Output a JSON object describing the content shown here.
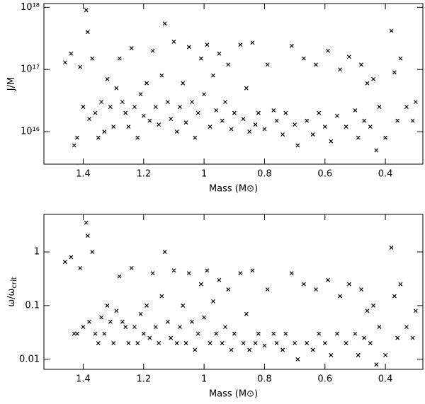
{
  "chart_data": [
    {
      "type": "scatter",
      "x_label": "Mass (M⊙)",
      "y_label": "J/M",
      "log_y": true,
      "marker": "x",
      "color": "#000000",
      "xlim": [
        1.53,
        0.276
      ],
      "ylim": [
        3000000000000000.0,
        1.15e+18
      ],
      "xticks": [
        1.4,
        1.2,
        1,
        0.8,
        0.6,
        0.4
      ],
      "yticks": [
        {
          "value": 1e+16,
          "label": "10¹⁶"
        },
        {
          "value": 1e+17,
          "label": "10¹⁷"
        },
        {
          "value": 1e+18,
          "label": "10¹⁸"
        }
      ],
      "x": [
        1.46,
        1.44,
        1.43,
        1.42,
        1.41,
        1.4,
        1.39,
        1.385,
        1.38,
        1.37,
        1.36,
        1.35,
        1.34,
        1.33,
        1.32,
        1.31,
        1.3,
        1.29,
        1.28,
        1.27,
        1.26,
        1.25,
        1.24,
        1.23,
        1.22,
        1.21,
        1.2,
        1.19,
        1.18,
        1.17,
        1.16,
        1.15,
        1.14,
        1.13,
        1.12,
        1.11,
        1.1,
        1.09,
        1.08,
        1.07,
        1.06,
        1.05,
        1.04,
        1.03,
        1.02,
        1.01,
        1.0,
        0.99,
        0.98,
        0.97,
        0.96,
        0.95,
        0.94,
        0.93,
        0.92,
        0.91,
        0.9,
        0.88,
        0.87,
        0.86,
        0.85,
        0.84,
        0.83,
        0.82,
        0.8,
        0.79,
        0.77,
        0.76,
        0.74,
        0.73,
        0.71,
        0.7,
        0.69,
        0.67,
        0.66,
        0.64,
        0.63,
        0.62,
        0.6,
        0.59,
        0.58,
        0.56,
        0.55,
        0.53,
        0.52,
        0.5,
        0.49,
        0.48,
        0.47,
        0.46,
        0.45,
        0.44,
        0.43,
        0.42,
        0.4,
        0.38,
        0.37,
        0.36,
        0.35,
        0.33,
        0.31,
        0.3
      ],
      "y": [
        1.3e+17,
        1.8e+17,
        6000000000000000.0,
        8000000000000000.0,
        1.1e+17,
        2.5e+16,
        9e+17,
        4e+17,
        1.6e+16,
        1.5e+17,
        2e+16,
        8000000000000000.0,
        3e+16,
        1e+16,
        7e+16,
        2.5e+16,
        1.2e+16,
        5e+16,
        1.5e+17,
        3e+16,
        2e+16,
        1.2e+16,
        2.2e+17,
        2.5e+16,
        8000000000000000.0,
        4e+16,
        1.8e+16,
        6e+16,
        1.5e+16,
        2e+17,
        2.5e+16,
        1.3e+16,
        8e+16,
        5.5e+17,
        3e+16,
        1.6e+16,
        2.8e+17,
        1e+16,
        2.5e+16,
        6e+16,
        1.4e+16,
        2.3e+17,
        3e+16,
        8000000000000000.0,
        2e+16,
        1.5e+17,
        4e+16,
        2.5e+17,
        1.2e+16,
        8e+16,
        2.2e+16,
        1.8e+17,
        1.5e+16,
        3e+16,
        1.2e+17,
        1.1e+16,
        2e+16,
        2.5e+17,
        1.6e+16,
        5e+16,
        1e+16,
        2.7e+17,
        1.3e+16,
        2e+16,
        1.1e+16,
        1.2e+17,
        2.2e+16,
        1.5e+16,
        9000000000000000.0,
        2e+16,
        2.4e+17,
        1.3e+16,
        6000000000000000.0,
        1.5e+17,
        1.5e+16,
        9000000000000000.0,
        1.2e+17,
        2e+16,
        1.2e+16,
        2e+17,
        7000000000000000.0,
        1.8e+16,
        1e+17,
        1.2e+16,
        1.6e+17,
        2.2e+16,
        8000000000000000.0,
        1.2e+17,
        1.5e+16,
        6e+16,
        1.2e+16,
        7e+16,
        5000000000000000.0,
        2.5e+16,
        8000000000000000.0,
        4.2e+17,
        9e+16,
        1.5e+16,
        1.5e+17,
        2.5e+16,
        1.5e+16,
        3e+16
      ]
    },
    {
      "type": "scatter",
      "x_label": "Mass (M⊙)",
      "y_label": "ω/ω",
      "y_label_sub": "crit",
      "log_y": true,
      "marker": "x",
      "color": "#000000",
      "xlim": [
        1.53,
        0.276
      ],
      "ylim": [
        0.0065,
        5
      ],
      "xticks": [
        1.4,
        1.2,
        1,
        0.8,
        0.6,
        0.4
      ],
      "yticks": [
        0.01,
        0.1,
        1
      ],
      "x": [
        1.46,
        1.44,
        1.43,
        1.42,
        1.41,
        1.4,
        1.39,
        1.385,
        1.38,
        1.37,
        1.36,
        1.35,
        1.34,
        1.33,
        1.32,
        1.31,
        1.3,
        1.29,
        1.28,
        1.27,
        1.26,
        1.25,
        1.24,
        1.23,
        1.22,
        1.21,
        1.2,
        1.19,
        1.18,
        1.17,
        1.16,
        1.15,
        1.14,
        1.13,
        1.12,
        1.11,
        1.1,
        1.09,
        1.08,
        1.07,
        1.06,
        1.05,
        1.04,
        1.03,
        1.02,
        1.01,
        1.0,
        0.99,
        0.98,
        0.97,
        0.96,
        0.95,
        0.94,
        0.93,
        0.92,
        0.91,
        0.9,
        0.88,
        0.87,
        0.86,
        0.85,
        0.84,
        0.83,
        0.82,
        0.8,
        0.79,
        0.77,
        0.76,
        0.74,
        0.73,
        0.71,
        0.7,
        0.69,
        0.67,
        0.66,
        0.64,
        0.63,
        0.62,
        0.6,
        0.59,
        0.58,
        0.56,
        0.55,
        0.53,
        0.52,
        0.5,
        0.49,
        0.48,
        0.47,
        0.46,
        0.45,
        0.44,
        0.43,
        0.42,
        0.4,
        0.38,
        0.37,
        0.36,
        0.35,
        0.33,
        0.31,
        0.3
      ],
      "y": [
        0.65,
        0.8,
        0.03,
        0.03,
        0.5,
        0.04,
        3.5,
        2,
        0.05,
        1,
        0.03,
        0.02,
        0.06,
        0.03,
        0.1,
        0.05,
        0.02,
        0.08,
        0.35,
        0.05,
        0.04,
        0.02,
        0.5,
        0.04,
        0.02,
        0.07,
        0.03,
        0.1,
        0.025,
        0.4,
        0.04,
        0.02,
        0.15,
        1,
        0.05,
        0.025,
        0.45,
        0.02,
        0.04,
        0.1,
        0.02,
        0.4,
        0.05,
        0.015,
        0.03,
        0.25,
        0.06,
        0.45,
        0.02,
        0.12,
        0.03,
        0.3,
        0.02,
        0.04,
        0.2,
        0.015,
        0.03,
        0.4,
        0.02,
        0.07,
        0.015,
        0.45,
        0.02,
        0.03,
        0.018,
        0.2,
        0.03,
        0.02,
        0.015,
        0.03,
        0.4,
        0.02,
        0.01,
        0.25,
        0.02,
        0.015,
        0.2,
        0.03,
        0.02,
        0.3,
        0.012,
        0.03,
        0.15,
        0.02,
        0.25,
        0.03,
        0.012,
        0.2,
        0.025,
        0.08,
        0.02,
        0.1,
        0.008,
        0.04,
        0.012,
        1.2,
        0.15,
        0.025,
        0.25,
        0.04,
        0.025,
        0.08
      ]
    }
  ]
}
